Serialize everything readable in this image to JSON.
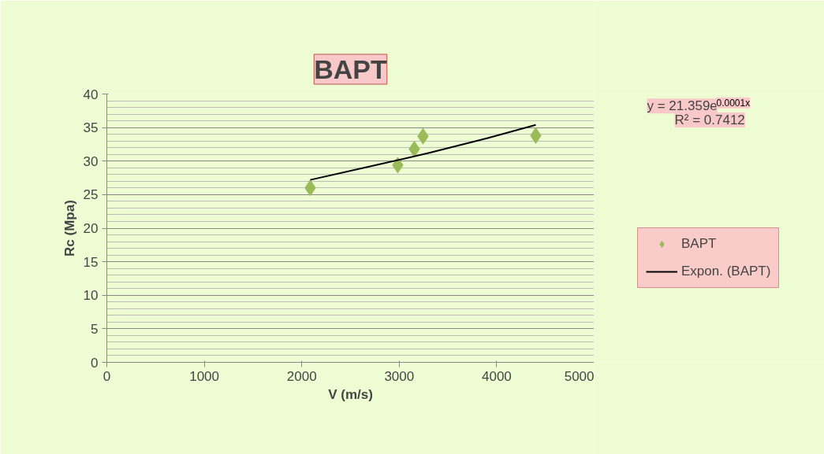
{
  "chart_data": {
    "type": "scatter",
    "title": "BAPT",
    "xlabel": "V (m/s)",
    "ylabel": "Rc (Mpa)",
    "xlim": [
      0,
      5000
    ],
    "xticks": [
      0,
      1000,
      2000,
      3000,
      4000,
      5000
    ],
    "ylim": [
      0,
      40
    ],
    "yticks": [
      0,
      5,
      10,
      15,
      20,
      25,
      30,
      35,
      40
    ],
    "grid": "y",
    "legend": "right",
    "marker": "diamond",
    "annotations": [
      "y = 21.359e$^{0.0001x}$",
      "R² = 0.7412"
    ],
    "series": [
      {
        "name": "BAPT",
        "color": "#9bbb59",
        "x": [
          2087,
          2985,
          3155,
          3244,
          4401
        ],
        "values": [
          26.0,
          29.4,
          31.8,
          33.7,
          33.8
        ]
      },
      {
        "name": "Expon. (BAPT)",
        "type": "line",
        "color": "#000000",
        "x": [
          2087,
          2700,
          3300,
          3900,
          4401
        ],
        "values": [
          27.2,
          29.2,
          31.2,
          33.4,
          35.4
        ],
        "line_style": "solid",
        "marker": "none"
      }
    ]
  }
}
